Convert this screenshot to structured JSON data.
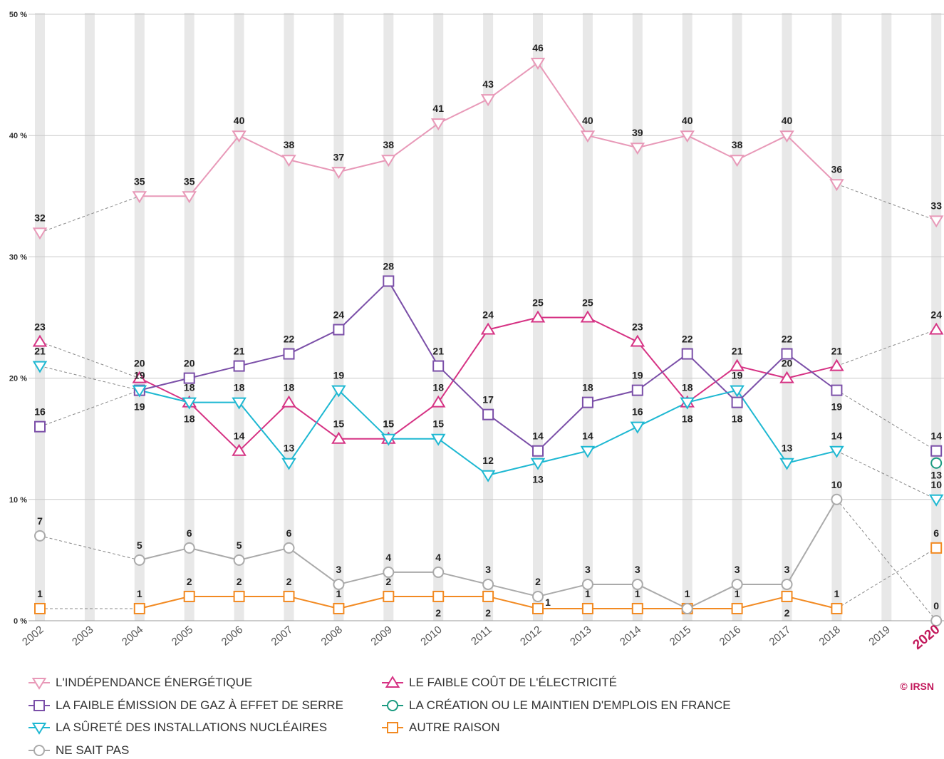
{
  "chart_data": {
    "type": "line",
    "x": [
      "2002",
      "2003",
      "2004",
      "2005",
      "2006",
      "2007",
      "2008",
      "2009",
      "2010",
      "2011",
      "2012",
      "2013",
      "2014",
      "2015",
      "2016",
      "2017",
      "2018",
      "2019",
      "2020"
    ],
    "highlight_x": "2020",
    "ylim": [
      0,
      50
    ],
    "yticks": [
      0,
      10,
      20,
      30,
      40,
      50
    ],
    "ytick_labels": [
      "0 %",
      "10 %",
      "20 %",
      "30 %",
      "40 %",
      "50 %"
    ],
    "grid": true,
    "legend_position": "bottom",
    "series": [
      {
        "name": "L'INDÉPENDANCE ÉNERGÉTIQUE",
        "marker": "triangle-down",
        "color": "#e899b8",
        "values": [
          32,
          null,
          35,
          35,
          40,
          38,
          37,
          38,
          41,
          43,
          46,
          40,
          39,
          40,
          38,
          40,
          36,
          null,
          33
        ]
      },
      {
        "name": "LE FAIBLE COÛT DE L'ÉLECTRICITÉ",
        "marker": "triangle-up",
        "color": "#d63384",
        "values": [
          23,
          null,
          20,
          18,
          14,
          18,
          15,
          15,
          18,
          24,
          25,
          25,
          23,
          18,
          21,
          20,
          21,
          null,
          24
        ]
      },
      {
        "name": "LA FAIBLE ÉMISSION DE GAZ À EFFET DE SERRE",
        "marker": "square",
        "color": "#7b4fa8",
        "values": [
          16,
          null,
          19,
          20,
          21,
          22,
          24,
          28,
          21,
          17,
          14,
          18,
          19,
          22,
          18,
          22,
          19,
          null,
          14
        ]
      },
      {
        "name": "LA CRÉATION OU LE MAINTIEN D'EMPLOIS EN FRANCE",
        "marker": "circle",
        "color": "#1a9a80",
        "values": [
          null,
          null,
          null,
          null,
          null,
          null,
          null,
          null,
          null,
          null,
          null,
          null,
          null,
          null,
          null,
          null,
          null,
          null,
          13
        ]
      },
      {
        "name": "LA SÛRETÉ DES INSTALLATIONS NUCLÉAIRES",
        "marker": "triangle-down",
        "color": "#1eb8d2",
        "values": [
          21,
          null,
          19,
          18,
          18,
          13,
          19,
          15,
          15,
          12,
          13,
          14,
          16,
          18,
          19,
          13,
          14,
          null,
          10
        ]
      },
      {
        "name": "AUTRE RAISON",
        "marker": "square",
        "color": "#f28a22",
        "values": [
          1,
          null,
          1,
          2,
          2,
          2,
          1,
          2,
          2,
          2,
          1,
          1,
          1,
          1,
          1,
          2,
          1,
          null,
          6
        ]
      },
      {
        "name": "NE SAIT PAS",
        "marker": "circle",
        "color": "#aaaaaa",
        "values": [
          7,
          null,
          5,
          6,
          5,
          6,
          3,
          4,
          4,
          3,
          2,
          3,
          3,
          1,
          3,
          3,
          10,
          null,
          0
        ]
      }
    ]
  },
  "credit": "© IRSN"
}
